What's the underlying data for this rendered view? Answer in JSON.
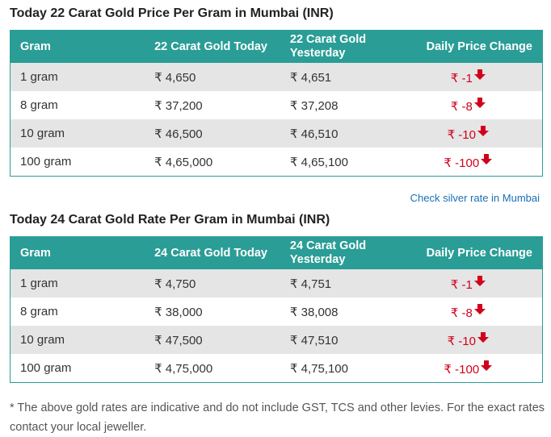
{
  "sections": [
    {
      "title": "Today 22 Carat Gold Price Per Gram in Mumbai (INR)",
      "headers": {
        "gram": "Gram",
        "today": "22 Carat Gold Today",
        "yesterday": "22 Carat Gold Yesterday",
        "change": "Daily Price Change"
      },
      "rows": [
        {
          "gram": "1 gram",
          "today": "₹ 4,650",
          "yesterday": "₹ 4,651",
          "change": "₹ -1"
        },
        {
          "gram": "8 gram",
          "today": "₹ 37,200",
          "yesterday": "₹ 37,208",
          "change": "₹ -8"
        },
        {
          "gram": "10 gram",
          "today": "₹ 46,500",
          "yesterday": "₹ 46,510",
          "change": "₹ -10"
        },
        {
          "gram": "100 gram",
          "today": "₹ 4,65,000",
          "yesterday": "₹ 4,65,100",
          "change": "₹ -100"
        }
      ]
    },
    {
      "title": "Today 24 Carat Gold Rate Per Gram in Mumbai (INR)",
      "headers": {
        "gram": "Gram",
        "today": "24 Carat Gold Today",
        "yesterday": "24 Carat Gold Yesterday",
        "change": "Daily Price Change"
      },
      "rows": [
        {
          "gram": "1 gram",
          "today": "₹ 4,750",
          "yesterday": "₹ 4,751",
          "change": "₹ -1"
        },
        {
          "gram": "8 gram",
          "today": "₹ 38,000",
          "yesterday": "₹ 38,008",
          "change": "₹ -8"
        },
        {
          "gram": "10 gram",
          "today": "₹ 47,500",
          "yesterday": "₹ 47,510",
          "change": "₹ -10"
        },
        {
          "gram": "100 gram",
          "today": "₹ 4,75,000",
          "yesterday": "₹ 4,75,100",
          "change": "₹ -100"
        }
      ]
    }
  ],
  "silver_link": "Check silver rate in Mumbai",
  "footnote": "* The above gold rates are indicative and do not include GST, TCS and other levies. For the exact rates contact your local jeweller.",
  "icons": {
    "change_indicator": "arrow-down-icon"
  },
  "colors": {
    "header_bg": "#2a9d96",
    "row_alt": "#e5e5e5",
    "negative_change": "#d0021b",
    "link": "#1a6fb5"
  }
}
